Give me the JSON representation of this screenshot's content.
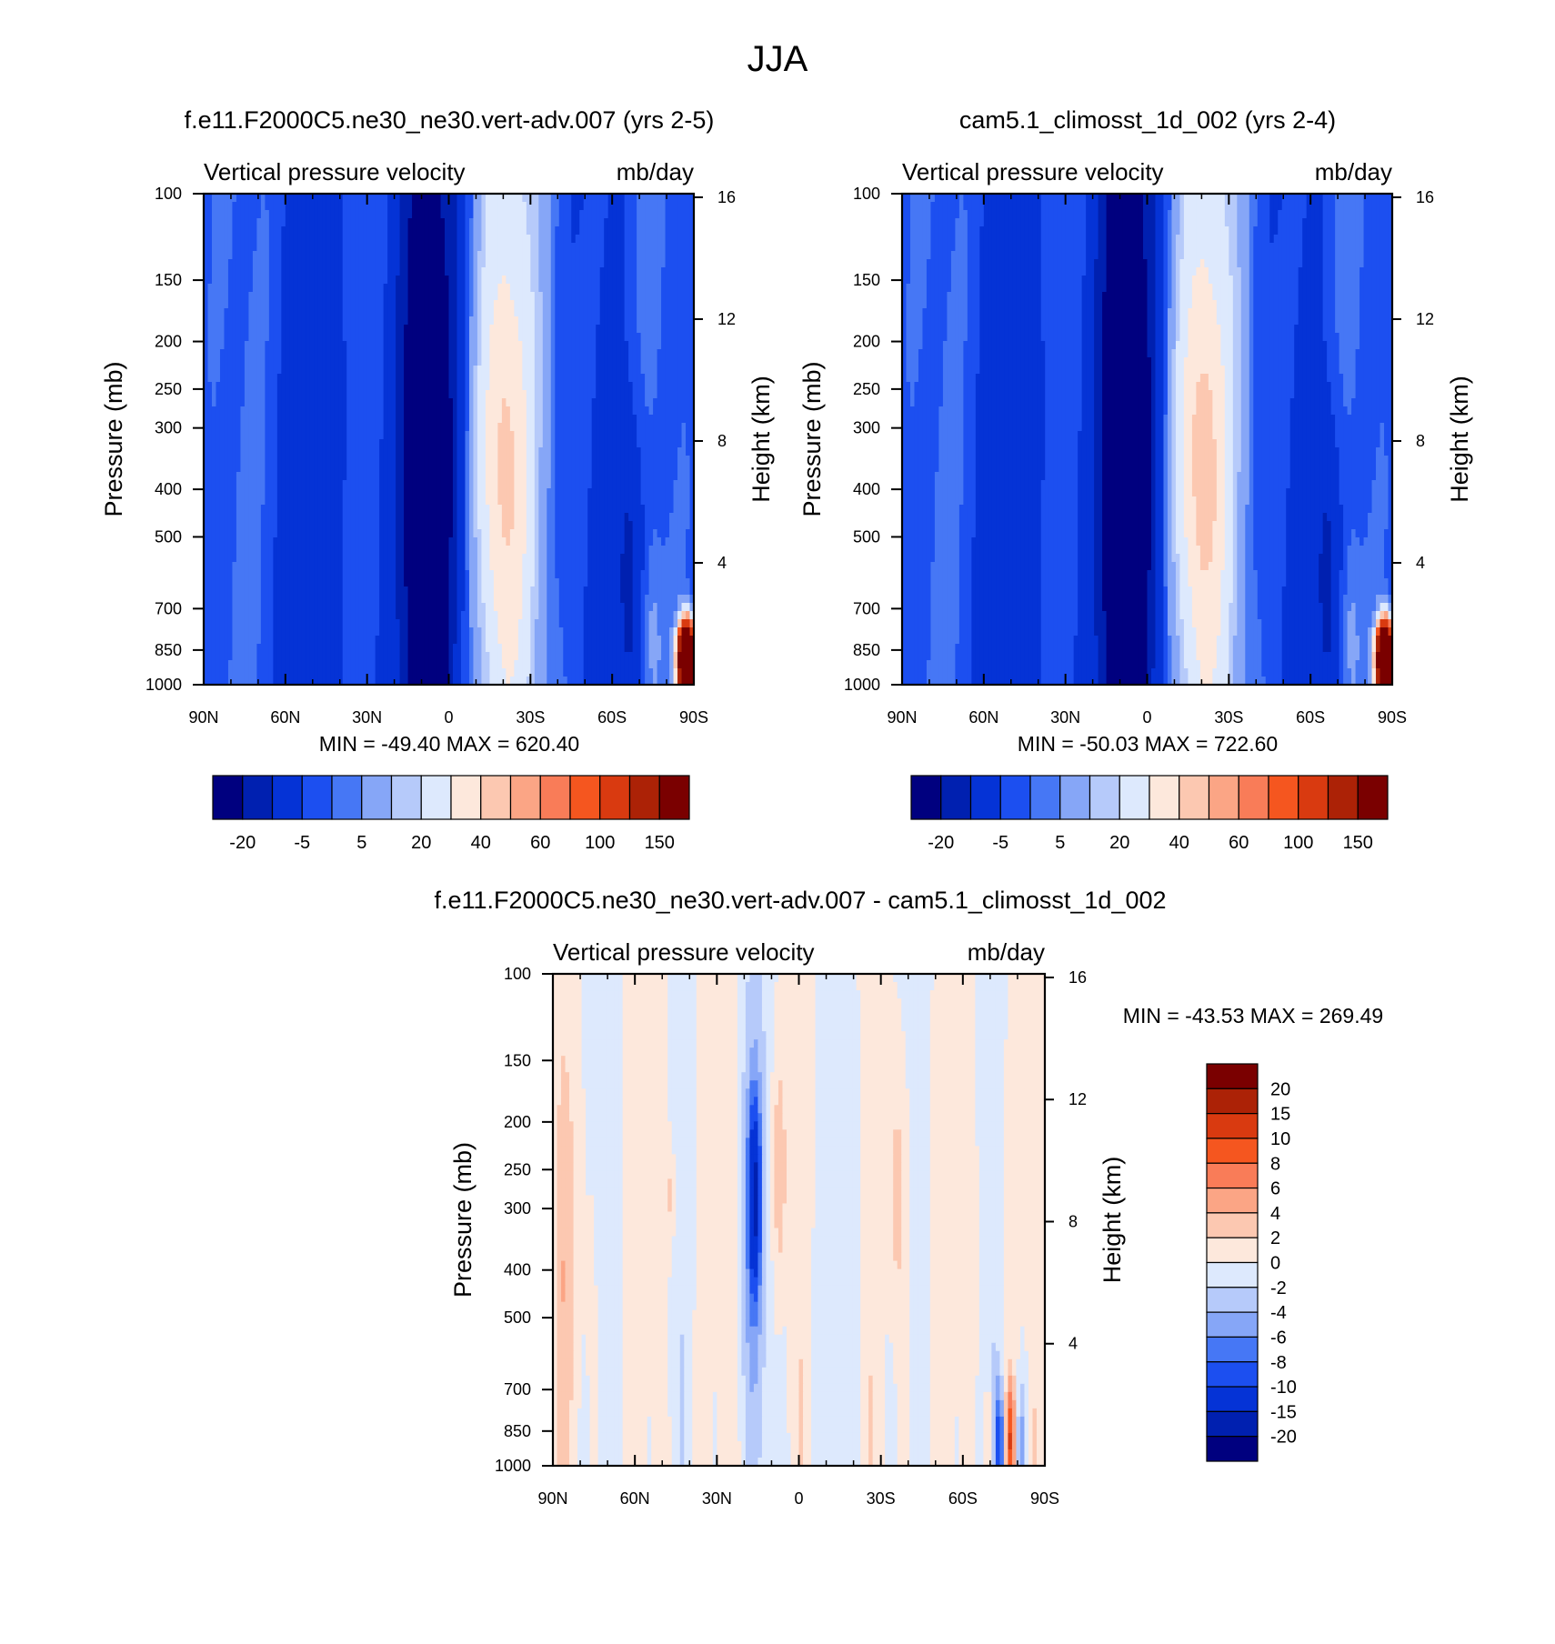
{
  "figure_title": "JJA",
  "chart_data": [
    {
      "type": "heatmap",
      "title": "f.e11.F2000C5.ne30_ne30.vert-adv.007 (yrs 2-5)",
      "left_label": "Vertical pressure velocity",
      "right_label": "mb/day",
      "ylabel": "Pressure (mb)",
      "y2label": "Height (km)",
      "x_ticks": [
        "90N",
        "60N",
        "30N",
        "0",
        "30S",
        "60S",
        "90S"
      ],
      "y_ticks": [
        "100",
        "150",
        "200",
        "250",
        "300",
        "400",
        "500",
        "700",
        "850",
        "1000"
      ],
      "y2_ticks": [
        "16",
        "12",
        "8",
        "4"
      ],
      "stats": "MIN = -49.40  MAX = 620.40",
      "colorbar_labels": [
        "-20",
        "-5",
        "5",
        "20",
        "40",
        "60",
        "100",
        "150"
      ]
    },
    {
      "type": "heatmap",
      "title": "cam5.1_climosst_1d_002 (yrs 2-4)",
      "left_label": "Vertical pressure velocity",
      "right_label": "mb/day",
      "ylabel": "Pressure (mb)",
      "y2label": "Height (km)",
      "x_ticks": [
        "90N",
        "60N",
        "30N",
        "0",
        "30S",
        "60S",
        "90S"
      ],
      "y_ticks": [
        "100",
        "150",
        "200",
        "250",
        "300",
        "400",
        "500",
        "700",
        "850",
        "1000"
      ],
      "y2_ticks": [
        "16",
        "12",
        "8",
        "4"
      ],
      "stats": "MIN = -50.03  MAX = 722.60",
      "colorbar_labels": [
        "-20",
        "-5",
        "5",
        "20",
        "40",
        "60",
        "100",
        "150"
      ]
    },
    {
      "type": "heatmap",
      "title": "f.e11.F2000C5.ne30_ne30.vert-adv.007 - cam5.1_climosst_1d_002",
      "left_label": "Vertical pressure velocity",
      "right_label": "mb/day",
      "ylabel": "Pressure (mb)",
      "y2label": "Height (km)",
      "x_ticks": [
        "90N",
        "60N",
        "30N",
        "0",
        "30S",
        "60S",
        "90S"
      ],
      "y_ticks": [
        "100",
        "150",
        "200",
        "250",
        "300",
        "400",
        "500",
        "700",
        "850",
        "1000"
      ],
      "y2_ticks": [
        "16",
        "12",
        "8",
        "4"
      ],
      "stats": "MIN = -43.53  MAX = 269.49",
      "colorbar_labels": [
        "20",
        "15",
        "10",
        "8",
        "6",
        "4",
        "2",
        "0",
        "-2",
        "-4",
        "-6",
        "-8",
        "-10",
        "-15",
        "-20"
      ]
    }
  ],
  "colors": {
    "abs_scale": [
      "#00007f",
      "#0020b0",
      "#0533d6",
      "#1c4ff0",
      "#4677f5",
      "#86a6f7",
      "#b6cafa",
      "#dde9fd",
      "#fde8dc",
      "#fcc8b1",
      "#fba585",
      "#f97c58",
      "#f5561f",
      "#d93a10",
      "#ac2206",
      "#7a0000"
    ],
    "diff_scale": [
      "#7a0000",
      "#ac2206",
      "#d93a10",
      "#f5561f",
      "#f97c58",
      "#fba585",
      "#fcc8b1",
      "#fde8dc",
      "#dde9fd",
      "#b6cafa",
      "#86a6f7",
      "#4677f5",
      "#1c4ff0",
      "#0533d6",
      "#0020b0",
      "#00007f"
    ]
  }
}
